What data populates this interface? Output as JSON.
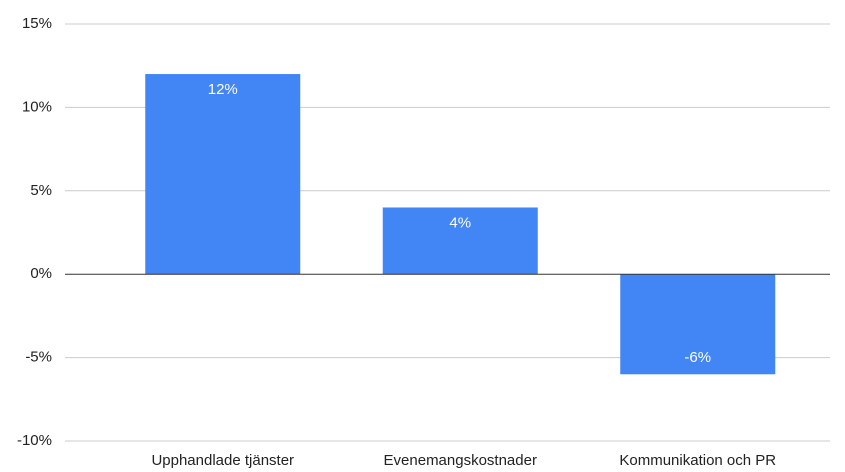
{
  "chart_data": {
    "type": "bar",
    "categories": [
      "Upphandlade tjänster",
      "Evenemangskostnader",
      "Kommunikation och PR"
    ],
    "values": [
      12,
      4,
      -6
    ],
    "value_labels": [
      "12%",
      "4%",
      "-6%"
    ],
    "color": "#4285f4",
    "ylim": [
      -10,
      15
    ],
    "yticks": [
      {
        "value": -10,
        "label": "-10%"
      },
      {
        "value": -5,
        "label": "-5%"
      },
      {
        "value": 0,
        "label": "0%"
      },
      {
        "value": 5,
        "label": "5%"
      },
      {
        "value": 10,
        "label": "10%"
      },
      {
        "value": 15,
        "label": "15%"
      }
    ],
    "grid": true
  }
}
